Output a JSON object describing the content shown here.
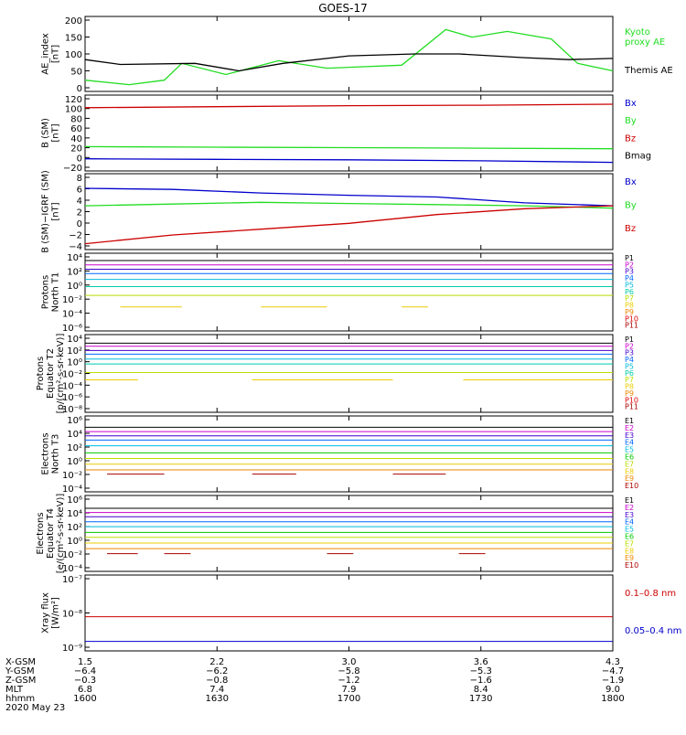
{
  "title": "GOES-17",
  "colors": {
    "black": "#000000",
    "green": "#22dd22",
    "red": "#cc0000",
    "blue": "#0000cc",
    "channels": [
      "#000000",
      "#cc00cc",
      "#4400cc",
      "#0066ff",
      "#00bbdd",
      "#00ccaa",
      "#00cc00",
      "#bbdd00",
      "#eecc00",
      "#ee8800",
      "#dd0000",
      "#aa0000"
    ]
  },
  "chart_data": [
    {
      "id": "ae",
      "type": "line",
      "ylabel": [
        "AE_index",
        "[nT]"
      ],
      "ylim": [
        0,
        200
      ],
      "yticks": [
        "200",
        "150",
        "100",
        "50",
        "0"
      ],
      "x": [
        0,
        15,
        30,
        45,
        60,
        75,
        90,
        105,
        120
      ],
      "series": [
        {
          "name": "Kyoto proxy AE",
          "legend": [
            "Kyoto",
            "proxy AE"
          ],
          "color": "green",
          "values": [
            [
              0,
              30
            ],
            [
              10,
              18
            ],
            [
              18,
              30
            ],
            [
              22,
              75
            ],
            [
              32,
              45
            ],
            [
              44,
              82
            ],
            [
              55,
              62
            ],
            [
              72,
              70
            ],
            [
              82,
              165
            ],
            [
              88,
              145
            ],
            [
              96,
              160
            ],
            [
              106,
              140
            ],
            [
              112,
              75
            ],
            [
              120,
              55
            ]
          ]
        },
        {
          "name": "Themis AE",
          "legend": [
            "Themis AE"
          ],
          "color": "black",
          "values": [
            [
              0,
              85
            ],
            [
              8,
              72
            ],
            [
              25,
              75
            ],
            [
              35,
              55
            ],
            [
              45,
              75
            ],
            [
              60,
              95
            ],
            [
              75,
              100
            ],
            [
              85,
              100
            ],
            [
              100,
              90
            ],
            [
              110,
              85
            ],
            [
              120,
              88
            ]
          ]
        }
      ]
    },
    {
      "id": "bsm",
      "type": "line",
      "ylabel": [
        "B (SM)",
        "[nT]"
      ],
      "ylim": [
        -25,
        125
      ],
      "yticks": [
        "120",
        "100",
        "80",
        "60",
        "40",
        "20",
        "0",
        "−20"
      ],
      "series": [
        {
          "name": "Bx",
          "color": "blue",
          "values": [
            [
              0,
              -1
            ],
            [
              30,
              -2
            ],
            [
              60,
              -3
            ],
            [
              90,
              -5
            ],
            [
              120,
              -8
            ]
          ]
        },
        {
          "name": "By",
          "color": "green",
          "values": [
            [
              0,
              23
            ],
            [
              30,
              22
            ],
            [
              60,
              21
            ],
            [
              90,
              20
            ],
            [
              120,
              19
            ]
          ]
        },
        {
          "name": "Bz",
          "color": "red",
          "values": [
            [
              0,
              100
            ],
            [
              30,
              102
            ],
            [
              60,
              104
            ],
            [
              90,
              105
            ],
            [
              120,
              107
            ]
          ]
        },
        {
          "name": "Bmag",
          "color": "black",
          "values": []
        }
      ]
    },
    {
      "id": "bigrf",
      "type": "line",
      "ylabel": [
        "B (SM)−IGRF (SM)",
        "[nT]"
      ],
      "ylim": [
        -4.5,
        8.5
      ],
      "yticks": [
        "8",
        "6",
        "4",
        "2",
        "0",
        "−2",
        "−4"
      ],
      "series": [
        {
          "name": "Bx",
          "color": "blue",
          "values": [
            [
              0,
              6
            ],
            [
              20,
              5.8
            ],
            [
              40,
              5.2
            ],
            [
              60,
              4.8
            ],
            [
              80,
              4.5
            ],
            [
              100,
              3.5
            ],
            [
              120,
              3
            ]
          ]
        },
        {
          "name": "By",
          "color": "green",
          "values": [
            [
              0,
              3
            ],
            [
              20,
              3.3
            ],
            [
              40,
              3.6
            ],
            [
              60,
              3.4
            ],
            [
              80,
              3.2
            ],
            [
              100,
              3
            ],
            [
              120,
              2.6
            ]
          ]
        },
        {
          "name": "Bz",
          "color": "red",
          "values": [
            [
              0,
              -3.5
            ],
            [
              20,
              -2
            ],
            [
              40,
              -1
            ],
            [
              60,
              0
            ],
            [
              80,
              1.5
            ],
            [
              100,
              2.5
            ],
            [
              120,
              3
            ]
          ]
        }
      ]
    },
    {
      "id": "p1",
      "type": "line",
      "ylabel": [
        "Protons",
        "North T1"
      ],
      "yscale": "log",
      "ylim": [
        -6.5,
        4.2
      ],
      "yticks": [
        "10⁴",
        "10²",
        "10⁰",
        "10⁻²",
        "10⁻⁴",
        "10⁻⁶"
      ],
      "series": [
        {
          "name": "P1",
          "color_index": 0,
          "level": 3.2
        },
        {
          "name": "P2",
          "color_index": 1,
          "level": 2.6
        },
        {
          "name": "P3",
          "color_index": 2,
          "level": 2.0
        },
        {
          "name": "P4",
          "color_index": 3,
          "level": 1.4
        },
        {
          "name": "P5",
          "color_index": 4,
          "level": 0.6
        },
        {
          "name": "P6",
          "color_index": 5,
          "level": -0.4
        },
        {
          "name": "P7",
          "color_index": 7,
          "level": -1.6
        },
        {
          "name": "P8",
          "color_index": 8,
          "level": -3.2,
          "segments": [
            [
              8,
              22
            ],
            [
              40,
              55
            ],
            [
              72,
              78
            ]
          ]
        },
        {
          "name": "P9",
          "color_index": 9,
          "level": null
        },
        {
          "name": "P10",
          "color_index": 10,
          "level": null
        },
        {
          "name": "P11",
          "color_index": 11,
          "level": null
        }
      ]
    },
    {
      "id": "p2",
      "type": "line",
      "ylabel": [
        "Protons",
        "Equator T2",
        "[p/(cm²-s-sr-keV)]"
      ],
      "yscale": "log",
      "ylim": [
        -8.5,
        4.2
      ],
      "yticks": [
        "10⁴",
        "10²",
        "10⁰",
        "10⁻²",
        "10⁻⁴",
        "10⁻⁶",
        "10⁻⁸"
      ],
      "series": [
        {
          "name": "P1",
          "color_index": 0,
          "level": 2.8
        },
        {
          "name": "P2",
          "color_index": 1,
          "level": 2.3
        },
        {
          "name": "P3",
          "color_index": 2,
          "level": 1.6
        },
        {
          "name": "P4",
          "color_index": 3,
          "level": 1.0
        },
        {
          "name": "P5",
          "color_index": 4,
          "level": 0.2
        },
        {
          "name": "P6",
          "color_index": 5,
          "level": -0.6
        },
        {
          "name": "P7",
          "color_index": 7,
          "level": -2.0
        },
        {
          "name": "P8",
          "color_index": 8,
          "level": -3.2,
          "segments": [
            [
              0,
              12
            ],
            [
              38,
              70
            ],
            [
              86,
              120
            ]
          ]
        },
        {
          "name": "P9",
          "color_index": 9,
          "level": null
        },
        {
          "name": "P10",
          "color_index": 10,
          "level": null
        },
        {
          "name": "P11",
          "color_index": 11,
          "level": null
        }
      ]
    },
    {
      "id": "e1",
      "type": "line",
      "ylabel": [
        "Electrons",
        "North T3"
      ],
      "yscale": "log",
      "ylim": [
        -4.5,
        6.2
      ],
      "yticks": [
        "10⁶",
        "10⁴",
        "10²",
        "10⁰",
        "10⁻²",
        "10⁻⁴"
      ],
      "series": [
        {
          "name": "E1",
          "color_index": 0,
          "level": 4.6
        },
        {
          "name": "E2",
          "color_index": 1,
          "level": 4.0
        },
        {
          "name": "E3",
          "color_index": 2,
          "level": 3.4
        },
        {
          "name": "E4",
          "color_index": 3,
          "level": 2.8
        },
        {
          "name": "E5",
          "color_index": 4,
          "level": 2.0
        },
        {
          "name": "E6",
          "color_index": 6,
          "level": 1.0
        },
        {
          "name": "E7",
          "color_index": 7,
          "level": 0.2
        },
        {
          "name": "E8",
          "color_index": 8,
          "level": -0.6
        },
        {
          "name": "E9",
          "color_index": 9,
          "level": -1.4
        },
        {
          "name": "E10",
          "color_index": 11,
          "level": -2.0,
          "segments": [
            [
              5,
              18
            ],
            [
              38,
              48
            ],
            [
              70,
              82
            ]
          ]
        }
      ]
    },
    {
      "id": "e2",
      "type": "line",
      "ylabel": [
        "Electrons",
        "Equator T4",
        "[e/(cm²-s-sr-keV)]"
      ],
      "yscale": "log",
      "ylim": [
        -4.5,
        6.2
      ],
      "yticks": [
        "10⁶",
        "10⁴",
        "10²",
        "10⁰",
        "10⁻²",
        "10⁻⁴"
      ],
      "series": [
        {
          "name": "E1",
          "color_index": 0,
          "level": 4.4
        },
        {
          "name": "E2",
          "color_index": 1,
          "level": 3.8
        },
        {
          "name": "E3",
          "color_index": 2,
          "level": 3.2
        },
        {
          "name": "E4",
          "color_index": 3,
          "level": 2.5
        },
        {
          "name": "E5",
          "color_index": 4,
          "level": 1.8
        },
        {
          "name": "E6",
          "color_index": 6,
          "level": 1.0
        },
        {
          "name": "E7",
          "color_index": 7,
          "level": 0.3
        },
        {
          "name": "E8",
          "color_index": 8,
          "level": -0.5
        },
        {
          "name": "E9",
          "color_index": 9,
          "level": -1.3
        },
        {
          "name": "E10",
          "color_index": 11,
          "level": -2.0,
          "segments": [
            [
              5,
              12
            ],
            [
              18,
              24
            ],
            [
              55,
              61
            ],
            [
              85,
              91
            ]
          ]
        }
      ]
    },
    {
      "id": "xray",
      "type": "line",
      "ylabel": [
        "Xray flux",
        "[W/m²]"
      ],
      "yscale": "log",
      "ylim": [
        -9,
        -7
      ],
      "yticks": [
        "10⁻⁷",
        "10⁻⁸",
        "10⁻⁹"
      ],
      "series": [
        {
          "name": "0.1–0.8 nm",
          "color": "red",
          "level": -8.1
        },
        {
          "name": "0.05–0.4 nm",
          "color": "blue",
          "level": -8.75
        }
      ]
    }
  ],
  "xaxis": {
    "rows": [
      {
        "label": "X-GSM",
        "values": [
          "1.5",
          "2.2",
          "3.0",
          "3.6",
          "4.3"
        ]
      },
      {
        "label": "Y-GSM",
        "values": [
          "−6.4",
          "−6.2",
          "−5.8",
          "−5.3",
          "−4.7"
        ]
      },
      {
        "label": "Z-GSM",
        "values": [
          "−0.3",
          "−0.8",
          "−1.2",
          "−1.6",
          "−1.9"
        ]
      },
      {
        "label": "MLT",
        "values": [
          "6.8",
          "7.4",
          "7.9",
          "8.4",
          "9.0"
        ]
      },
      {
        "label": "hhmm",
        "values": [
          "1600",
          "1630",
          "1700",
          "1730",
          "1800"
        ]
      }
    ],
    "date": "2020 May 23"
  }
}
